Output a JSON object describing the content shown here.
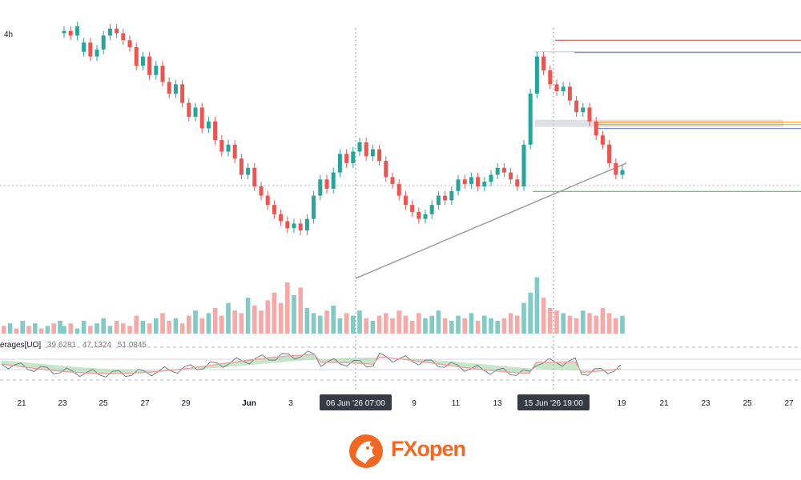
{
  "timeframe": "4h",
  "indicator": {
    "name": "erages[UO]",
    "values": [
      "39.6281",
      "47.1324",
      "51.0845"
    ]
  },
  "brand": {
    "prefix": "FX",
    "suffix": "open"
  },
  "colors": {
    "up": "#26a69a",
    "down": "#ef5350",
    "up_vol": "#80cbc4",
    "down_vol": "#f7a9a7",
    "red_line": "#e53935",
    "blue_line": "#5b7bd5",
    "orange_line": "#f59e0b",
    "green_line": "#4caf50",
    "brand": "#f26722"
  },
  "chart_data": {
    "type": "candlestick",
    "x_axis_labels": [
      "21",
      "23",
      "25",
      "27",
      "29",
      "Jun",
      "3",
      "06 Jun '26  07:00",
      "9",
      "11",
      "13",
      "15 Jun '26  19:00",
      "19",
      "21",
      "23",
      "25",
      "27"
    ],
    "crosshair_labels": [
      "06 Jun '26  07:00",
      "15 Jun '26  19:00"
    ],
    "price_scale": [
      0,
      100
    ],
    "candles": [
      {
        "o": 96,
        "c": 97
      },
      {
        "o": 97,
        "c": 95
      },
      {
        "o": 95,
        "c": 99
      },
      {
        "o": 88,
        "c": 92
      },
      {
        "o": 92,
        "c": 86
      },
      {
        "o": 86,
        "c": 89
      },
      {
        "o": 89,
        "c": 95
      },
      {
        "o": 95,
        "c": 98
      },
      {
        "o": 98,
        "c": 96
      },
      {
        "o": 96,
        "c": 93
      },
      {
        "o": 93,
        "c": 90
      },
      {
        "o": 90,
        "c": 82
      },
      {
        "o": 82,
        "c": 86
      },
      {
        "o": 86,
        "c": 78
      },
      {
        "o": 78,
        "c": 82
      },
      {
        "o": 82,
        "c": 75
      },
      {
        "o": 75,
        "c": 70
      },
      {
        "o": 70,
        "c": 74
      },
      {
        "o": 74,
        "c": 66
      },
      {
        "o": 66,
        "c": 60
      },
      {
        "o": 60,
        "c": 64
      },
      {
        "o": 64,
        "c": 55
      },
      {
        "o": 55,
        "c": 58
      },
      {
        "o": 58,
        "c": 50
      },
      {
        "o": 50,
        "c": 45
      },
      {
        "o": 45,
        "c": 48
      },
      {
        "o": 48,
        "c": 42
      },
      {
        "o": 42,
        "c": 35
      },
      {
        "o": 35,
        "c": 38
      },
      {
        "o": 38,
        "c": 30
      },
      {
        "o": 30,
        "c": 26
      },
      {
        "o": 26,
        "c": 22
      },
      {
        "o": 22,
        "c": 18
      },
      {
        "o": 18,
        "c": 15
      },
      {
        "o": 15,
        "c": 12
      },
      {
        "o": 12,
        "c": 14
      },
      {
        "o": 14,
        "c": 11
      },
      {
        "o": 11,
        "c": 16
      },
      {
        "o": 16,
        "c": 26
      },
      {
        "o": 26,
        "c": 33
      },
      {
        "o": 33,
        "c": 29
      },
      {
        "o": 29,
        "c": 36
      },
      {
        "o": 36,
        "c": 44
      },
      {
        "o": 44,
        "c": 40
      },
      {
        "o": 40,
        "c": 45
      },
      {
        "o": 45,
        "c": 49
      },
      {
        "o": 49,
        "c": 43
      },
      {
        "o": 43,
        "c": 46
      },
      {
        "o": 46,
        "c": 41
      },
      {
        "o": 41,
        "c": 34
      },
      {
        "o": 34,
        "c": 31
      },
      {
        "o": 31,
        "c": 26
      },
      {
        "o": 26,
        "c": 22
      },
      {
        "o": 22,
        "c": 19
      },
      {
        "o": 19,
        "c": 16
      },
      {
        "o": 16,
        "c": 18
      },
      {
        "o": 18,
        "c": 22
      },
      {
        "o": 22,
        "c": 26
      },
      {
        "o": 26,
        "c": 24
      },
      {
        "o": 24,
        "c": 28
      },
      {
        "o": 28,
        "c": 33
      },
      {
        "o": 33,
        "c": 31
      },
      {
        "o": 31,
        "c": 34
      },
      {
        "o": 34,
        "c": 30
      },
      {
        "o": 30,
        "c": 32
      },
      {
        "o": 32,
        "c": 35
      },
      {
        "o": 35,
        "c": 38
      },
      {
        "o": 38,
        "c": 36
      },
      {
        "o": 36,
        "c": 33
      },
      {
        "o": 33,
        "c": 30
      },
      {
        "o": 30,
        "c": 48
      },
      {
        "o": 48,
        "c": 70
      },
      {
        "o": 70,
        "c": 86
      },
      {
        "o": 86,
        "c": 80
      },
      {
        "o": 80,
        "c": 74
      },
      {
        "o": 74,
        "c": 71
      },
      {
        "o": 71,
        "c": 73
      },
      {
        "o": 73,
        "c": 67
      },
      {
        "o": 67,
        "c": 62
      },
      {
        "o": 62,
        "c": 64
      },
      {
        "o": 64,
        "c": 58
      },
      {
        "o": 58,
        "c": 52
      },
      {
        "o": 52,
        "c": 48
      },
      {
        "o": 48,
        "c": 40
      },
      {
        "o": 40,
        "c": 35
      },
      {
        "o": 35,
        "c": 37
      }
    ],
    "volume": [
      3,
      4,
      2,
      5,
      3,
      4,
      6,
      3,
      5,
      4,
      3,
      7,
      5,
      4,
      6,
      8,
      5,
      6,
      4,
      7,
      9,
      6,
      8,
      10,
      7,
      12,
      9,
      8,
      14,
      11,
      9,
      13,
      16,
      12,
      20,
      15,
      18,
      10,
      8,
      7,
      9,
      11,
      6,
      8,
      7,
      9,
      6,
      5,
      7,
      8,
      6,
      9,
      7,
      5,
      8,
      6,
      7,
      9,
      6,
      5,
      7,
      6,
      8,
      5,
      7,
      6,
      5,
      6,
      8,
      7,
      12,
      16,
      22,
      14,
      10,
      9,
      8,
      7,
      6,
      9,
      8,
      7,
      10,
      8,
      6,
      7
    ],
    "levels": [
      {
        "name": "top-red",
        "price": 93,
        "color": "red_line"
      },
      {
        "name": "blue-upper",
        "price": 88,
        "color": "blue_line"
      },
      {
        "name": "orange-zone",
        "price": 57,
        "color": "orange_line"
      },
      {
        "name": "blue-lower",
        "price": 56,
        "color": "blue_line"
      },
      {
        "name": "green-low",
        "price": 32,
        "color": "green_line"
      }
    ]
  }
}
